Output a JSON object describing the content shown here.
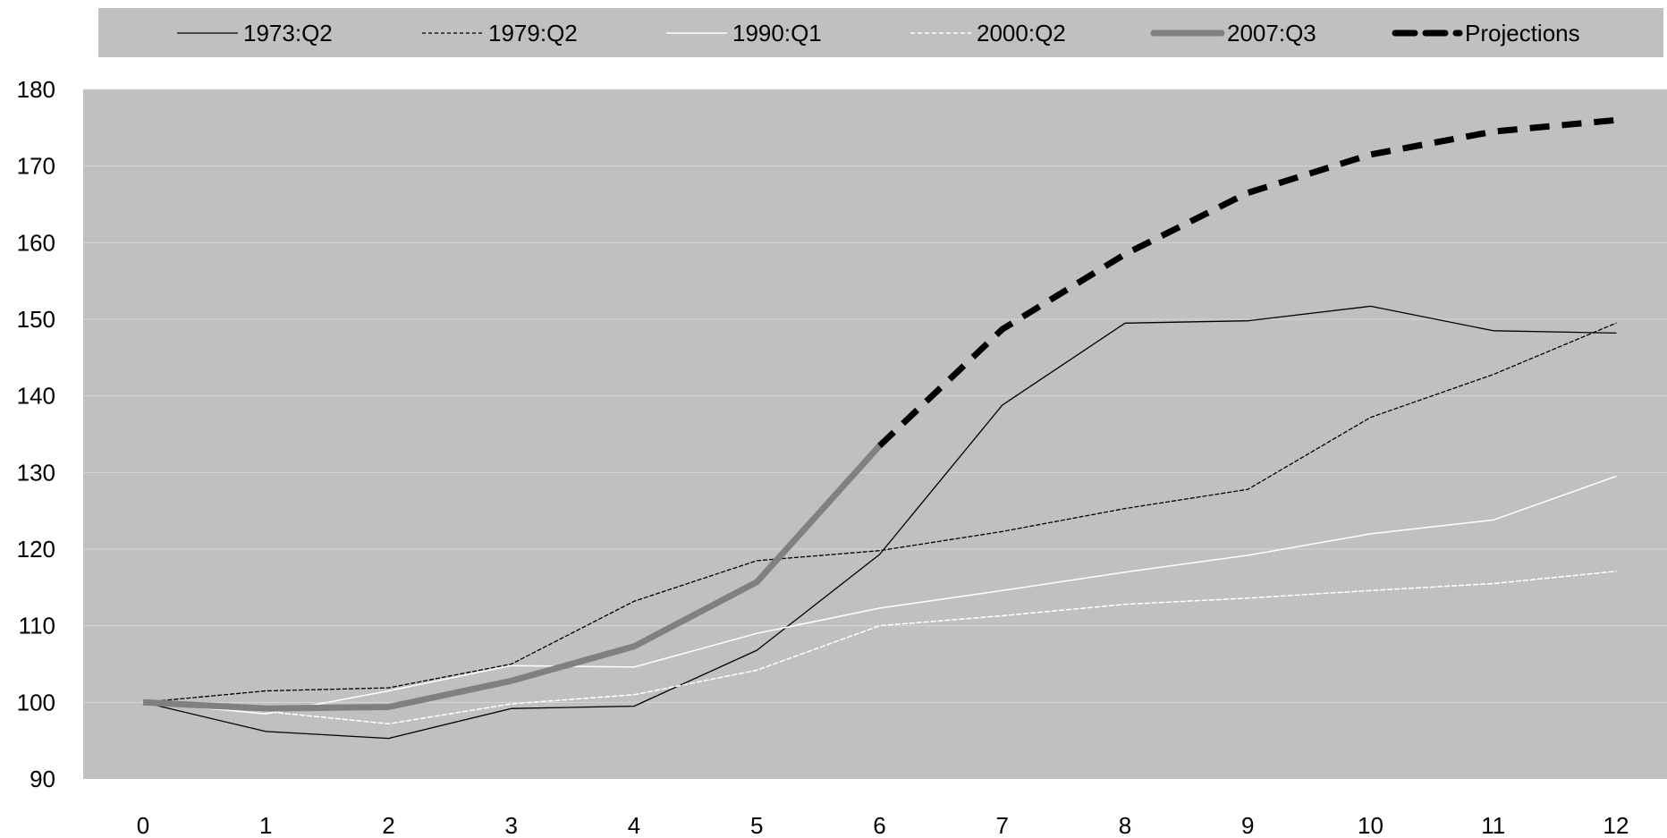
{
  "chart_data": {
    "type": "line",
    "title": "",
    "xlabel": "",
    "ylabel": "",
    "x": [
      0,
      1,
      2,
      3,
      4,
      5,
      6,
      7,
      8,
      9,
      10,
      11,
      12
    ],
    "x_tick_labels": [
      "0",
      "1",
      "2",
      "3",
      "4",
      "5",
      "6",
      "7",
      "8",
      "9",
      "10",
      "11",
      "12"
    ],
    "xlim": [
      0,
      12
    ],
    "ylim": [
      90,
      180
    ],
    "y_ticks": [
      90,
      100,
      110,
      120,
      130,
      140,
      150,
      160,
      170,
      180
    ],
    "y_tick_labels": [
      "90",
      "100",
      "110",
      "120",
      "130",
      "140",
      "150",
      "160",
      "170",
      "180"
    ],
    "grid": true,
    "legend_position": "top",
    "colors": {
      "plot_background": "#c0c0c0",
      "legend_background": "#c0c0c0",
      "gridline": "#d6d6d6",
      "page_background": "#ffffff"
    },
    "series": [
      {
        "name": "1973:Q2",
        "x": [
          0,
          1,
          2,
          3,
          4,
          5,
          6,
          7,
          8,
          9,
          10,
          11,
          12
        ],
        "values": [
          100,
          96.2,
          95.3,
          99.2,
          99.5,
          106.8,
          119.3,
          138.8,
          149.5,
          149.8,
          151.7,
          148.5,
          148.2
        ],
        "style": {
          "color": "#000000",
          "width": 1.3,
          "dash": ""
        }
      },
      {
        "name": "1979:Q2",
        "x": [
          0,
          1,
          2,
          3,
          4,
          5,
          6,
          7,
          8,
          9,
          10,
          11,
          12
        ],
        "values": [
          100,
          101.5,
          101.9,
          105,
          113.2,
          118.5,
          119.8,
          122.3,
          125.3,
          127.8,
          137.2,
          142.8,
          149.5
        ],
        "style": {
          "color": "#000000",
          "width": 1.3,
          "dash": "4 3"
        }
      },
      {
        "name": "1990:Q1",
        "x": [
          0,
          1,
          2,
          3,
          4,
          5,
          6,
          7,
          8,
          9,
          10,
          11,
          12
        ],
        "values": [
          100,
          98.5,
          101.5,
          104.8,
          104.6,
          109,
          112.3,
          114.6,
          117,
          119.2,
          122,
          123.8,
          129.5
        ],
        "style": {
          "color": "#ffffff",
          "width": 1.5,
          "dash": ""
        }
      },
      {
        "name": "2000:Q2",
        "x": [
          0,
          1,
          2,
          3,
          4,
          5,
          6,
          7,
          8,
          9,
          10,
          11,
          12
        ],
        "values": [
          100,
          98.8,
          97.2,
          99.8,
          101,
          104.2,
          110,
          111.3,
          112.8,
          113.6,
          114.6,
          115.5,
          117.1
        ],
        "style": {
          "color": "#ffffff",
          "width": 1.5,
          "dash": "5 3"
        }
      },
      {
        "name": "2007:Q3",
        "x": [
          0,
          1,
          2,
          3,
          4,
          5,
          6
        ],
        "values": [
          100,
          99.2,
          99.4,
          102.8,
          107.3,
          115.7,
          133.5
        ],
        "style": {
          "color": "#808080",
          "width": 7,
          "dash": ""
        }
      },
      {
        "name": "Projections",
        "x": [
          6,
          7,
          8,
          9,
          10,
          11,
          12
        ],
        "values": [
          133.5,
          148.7,
          158.5,
          166.5,
          171.5,
          174.5,
          176
        ],
        "style": {
          "color": "#000000",
          "width": 7,
          "dash": "22 14"
        }
      }
    ]
  }
}
